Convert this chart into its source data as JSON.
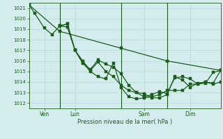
{
  "xlabel": "Pression niveau de la mer( hPa )",
  "ylim": [
    1011.5,
    1021.5
  ],
  "xlim": [
    0,
    100
  ],
  "yticks": [
    1012,
    1013,
    1014,
    1015,
    1016,
    1017,
    1018,
    1019,
    1020,
    1021
  ],
  "xtick_positions": [
    8,
    24,
    60,
    84
  ],
  "xtick_labels": [
    "Ven",
    "Lun",
    "Sam",
    "Dim"
  ],
  "vlines": [
    16,
    48,
    72
  ],
  "bg_color": "#d4ecee",
  "grid_color": "#b8d8da",
  "line_color": "#1a5c1a",
  "series1_x": [
    0,
    3,
    8,
    12,
    16,
    20,
    24,
    28,
    32,
    36,
    40,
    44,
    48,
    52,
    56,
    60,
    64,
    68,
    72,
    76,
    80,
    84,
    88,
    92,
    96,
    100
  ],
  "series1_y": [
    1021.3,
    1020.5,
    1019.1,
    1018.5,
    1019.3,
    1019.2,
    1017.0,
    1015.8,
    1015.2,
    1016.1,
    1015.7,
    1015.4,
    1014.8,
    1013.7,
    1013.0,
    1012.9,
    1012.5,
    1012.5,
    1012.8,
    1014.5,
    1014.2,
    1013.5,
    1013.9,
    1014.0,
    1013.8,
    1014.0
  ],
  "series2_x": [
    0,
    16,
    48,
    72,
    100
  ],
  "series2_y": [
    1021.3,
    1018.8,
    1017.2,
    1016.0,
    1015.1
  ],
  "series3_x": [
    16,
    20,
    24,
    28,
    32,
    36,
    40,
    44,
    48,
    52,
    56,
    60,
    64,
    68,
    72,
    76,
    80,
    84,
    88,
    92,
    96,
    100
  ],
  "series3_y": [
    1019.3,
    1019.5,
    1017.0,
    1015.8,
    1015.0,
    1014.5,
    1014.3,
    1015.8,
    1013.5,
    1012.6,
    1012.4,
    1012.5,
    1012.6,
    1012.8,
    1013.2,
    1013.2,
    1013.2,
    1013.8,
    1013.8,
    1013.9,
    1014.9,
    1015.1
  ],
  "series4_x": [
    16,
    20,
    24,
    28,
    32,
    36,
    40,
    44,
    48,
    52,
    56,
    60,
    64,
    68,
    72,
    76,
    80,
    84,
    88,
    92,
    96,
    100
  ],
  "series4_y": [
    1019.3,
    1019.5,
    1017.0,
    1016.0,
    1015.1,
    1015.9,
    1015.0,
    1014.5,
    1013.7,
    1013.2,
    1013.0,
    1012.6,
    1012.8,
    1013.1,
    1012.9,
    1014.4,
    1014.5,
    1014.3,
    1013.8,
    1014.0,
    1013.9,
    1015.1
  ]
}
